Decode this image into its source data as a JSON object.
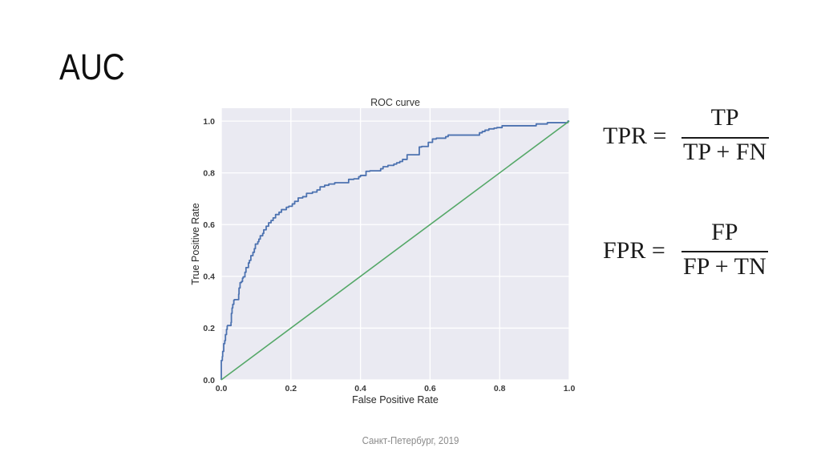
{
  "slide": {
    "title": "AUC",
    "footer": "Санкт-Петербург, 2019"
  },
  "formulas": {
    "tpr": {
      "lhs": "TPR =",
      "numerator": "TP",
      "denominator": "TP + FN"
    },
    "fpr": {
      "lhs": "FPR =",
      "numerator": "FP",
      "denominator": "FP + TN"
    }
  },
  "chart_data": {
    "type": "line",
    "title": "ROC curve",
    "xlabel": "False Positive Rate",
    "ylabel": "True Positive Rate",
    "xlim": [
      0.0,
      1.0
    ],
    "ylim": [
      0.0,
      1.05
    ],
    "xticks": [
      0.0,
      0.2,
      0.4,
      0.6,
      0.8,
      1.0
    ],
    "yticks": [
      0.0,
      0.2,
      0.4,
      0.6,
      0.8,
      1.0
    ],
    "grid": true,
    "legend": false,
    "plot_background": "#eaeaf2",
    "grid_color": "#ffffff",
    "tick_color": "#3a3a3a",
    "label_color": "#262626",
    "title_color": "#333333",
    "series": [
      {
        "name": "ROC curve",
        "color": "#4c72b0",
        "width": 1.8,
        "step": true,
        "x": [
          0.0,
          0.0,
          0.003,
          0.004,
          0.007,
          0.01,
          0.012,
          0.015,
          0.017,
          0.018,
          0.028,
          0.029,
          0.031,
          0.033,
          0.036,
          0.038,
          0.05,
          0.051,
          0.054,
          0.058,
          0.061,
          0.063,
          0.068,
          0.071,
          0.078,
          0.081,
          0.085,
          0.091,
          0.095,
          0.098,
          0.105,
          0.108,
          0.112,
          0.119,
          0.122,
          0.129,
          0.136,
          0.143,
          0.149,
          0.156,
          0.166,
          0.173,
          0.187,
          0.194,
          0.204,
          0.211,
          0.221,
          0.234,
          0.245,
          0.262,
          0.275,
          0.284,
          0.297,
          0.309,
          0.326,
          0.366,
          0.381,
          0.395,
          0.4,
          0.416,
          0.427,
          0.458,
          0.465,
          0.479,
          0.496,
          0.504,
          0.513,
          0.521,
          0.534,
          0.542,
          0.569,
          0.576,
          0.595,
          0.607,
          0.618,
          0.645,
          0.652,
          0.668,
          0.742,
          0.75,
          0.758,
          0.769,
          0.784,
          0.792,
          0.807,
          0.809,
          0.905,
          0.91,
          0.937,
          0.94,
          0.996,
          1.0
        ],
        "y": [
          0.0,
          0.055,
          0.075,
          0.09,
          0.11,
          0.14,
          0.152,
          0.175,
          0.195,
          0.208,
          0.21,
          0.222,
          0.257,
          0.278,
          0.292,
          0.308,
          0.31,
          0.331,
          0.355,
          0.376,
          0.38,
          0.393,
          0.398,
          0.416,
          0.434,
          0.452,
          0.462,
          0.48,
          0.493,
          0.507,
          0.525,
          0.534,
          0.544,
          0.557,
          0.566,
          0.58,
          0.594,
          0.607,
          0.616,
          0.626,
          0.639,
          0.648,
          0.658,
          0.667,
          0.671,
          0.68,
          0.69,
          0.703,
          0.708,
          0.721,
          0.726,
          0.734,
          0.746,
          0.752,
          0.757,
          0.762,
          0.775,
          0.777,
          0.785,
          0.79,
          0.806,
          0.808,
          0.816,
          0.824,
          0.829,
          0.834,
          0.839,
          0.844,
          0.852,
          0.87,
          0.87,
          0.9,
          0.902,
          0.918,
          0.931,
          0.934,
          0.94,
          0.946,
          0.946,
          0.955,
          0.96,
          0.965,
          0.97,
          0.973,
          0.975,
          0.982,
          0.982,
          0.989,
          0.989,
          0.994,
          0.994,
          1.0
        ]
      },
      {
        "name": "chance diagonal",
        "color": "#55a868",
        "width": 1.6,
        "step": false,
        "x": [
          0.0,
          1.0
        ],
        "y": [
          0.0,
          1.0
        ]
      }
    ]
  }
}
